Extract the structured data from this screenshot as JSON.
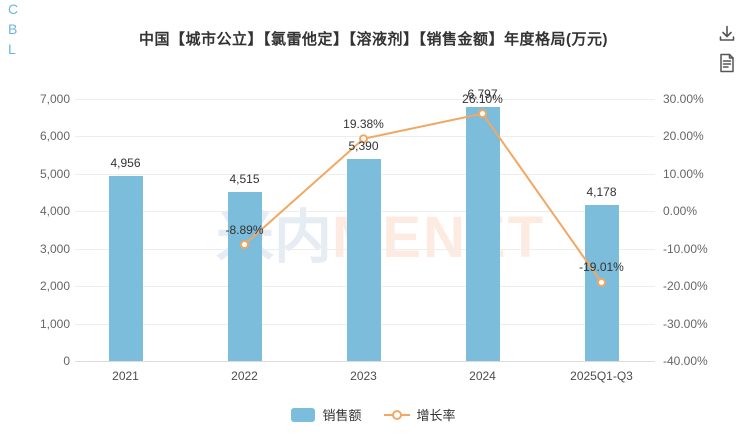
{
  "sidebar": {
    "letters": [
      "C",
      "B",
      "L"
    ]
  },
  "header": {
    "title": "中国【城市公立】【氯雷他定】【溶液剂】【销售金额】年度格局(万元)",
    "icons": [
      "download-icon",
      "report-icon"
    ]
  },
  "watermark": {
    "part1": "米内",
    "part2": "MENET"
  },
  "legend": {
    "bar_label": "销售额",
    "line_label": "增长率"
  },
  "colors": {
    "bar": "#7cbddb",
    "line": "#f2a863",
    "grid": "#ededed",
    "accent_blue": "#6cb5e3"
  },
  "chart_data": {
    "type": "bar",
    "combo": "bar+line",
    "title": "中国【城市公立】【氯雷他定】【溶液剂】【销售金额】年度格局(万元)",
    "categories": [
      "2021",
      "2022",
      "2023",
      "2024",
      "2025Q1-Q3"
    ],
    "series": [
      {
        "name": "销售额",
        "type": "bar",
        "axis": "left",
        "values": [
          4956,
          4515,
          5390,
          6797,
          4178
        ],
        "labels": [
          "4,956",
          "4,515",
          "5,390",
          "6,797",
          "4,178"
        ],
        "color": "#7cbddb"
      },
      {
        "name": "增长率",
        "type": "line",
        "axis": "right",
        "values": [
          null,
          -8.89,
          19.38,
          26.1,
          -19.01
        ],
        "labels": [
          null,
          "-8.89%",
          "19.38%",
          "26.10%",
          "-19.01%"
        ],
        "color": "#f2a863"
      }
    ],
    "left_axis": {
      "min": 0,
      "max": 7000,
      "ticks": [
        "7,000",
        "6,000",
        "5,000",
        "4,000",
        "3,000",
        "2,000",
        "1,000",
        "0"
      ],
      "unit": "万元"
    },
    "right_axis": {
      "min": -40,
      "max": 30,
      "ticks": [
        "30.00%",
        "20.00%",
        "10.00%",
        "0.00%",
        "-10.00%",
        "-20.00%",
        "-30.00%",
        "-40.00%"
      ]
    },
    "grid": true,
    "legend_position": "bottom"
  }
}
